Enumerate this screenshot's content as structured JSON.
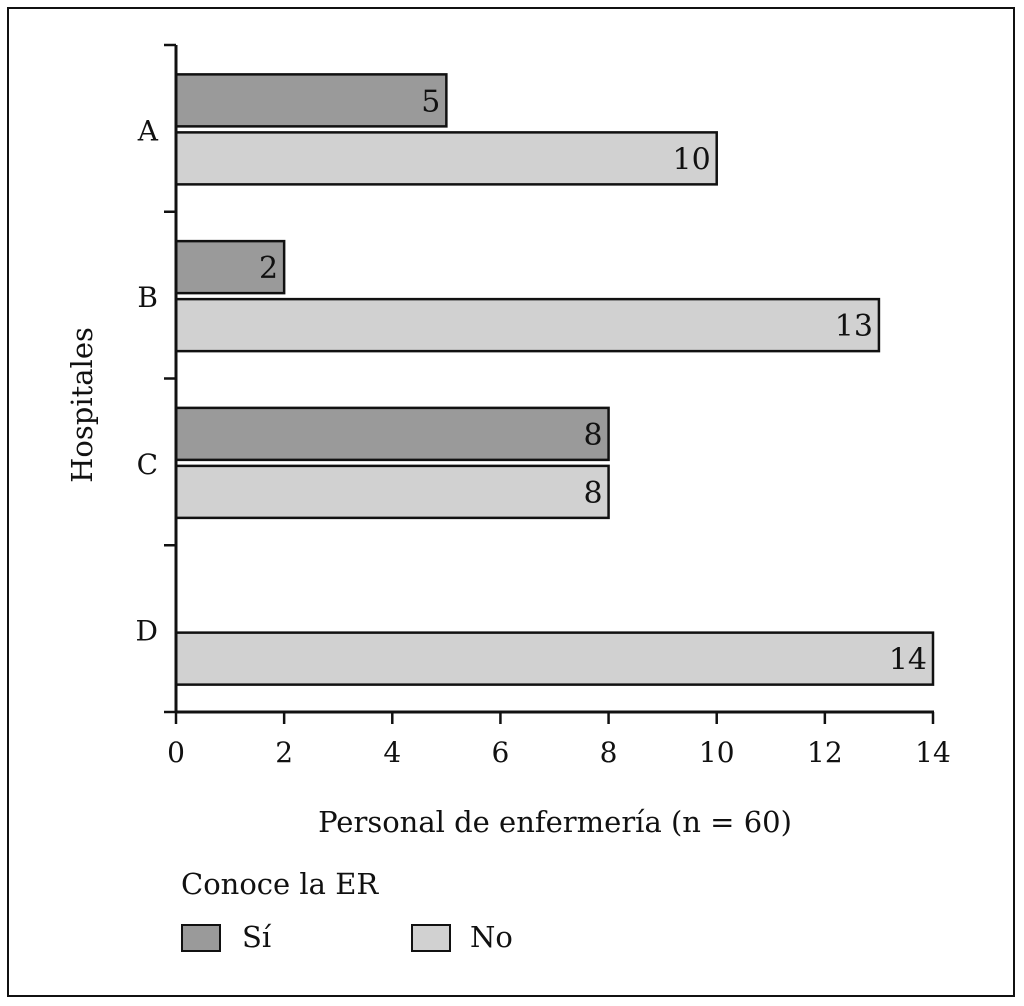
{
  "chart_data": {
    "type": "bar",
    "orientation": "horizontal",
    "categories": [
      "A",
      "B",
      "C",
      "D"
    ],
    "series": [
      {
        "name": "Sí",
        "values": [
          5,
          2,
          8,
          null
        ],
        "color": "#9a9a9a"
      },
      {
        "name": "No",
        "values": [
          10,
          13,
          8,
          14
        ],
        "color": "#d1d1d1"
      }
    ],
    "xlabel": "Personal de enfermería (n = 60)",
    "ylabel": "Hospitales",
    "xlim": [
      0,
      14
    ],
    "xticks": [
      0,
      2,
      4,
      6,
      8,
      10,
      12,
      14
    ],
    "grid": false,
    "legend": {
      "title": "Conoce la ER",
      "placement": "bottom-left"
    }
  }
}
